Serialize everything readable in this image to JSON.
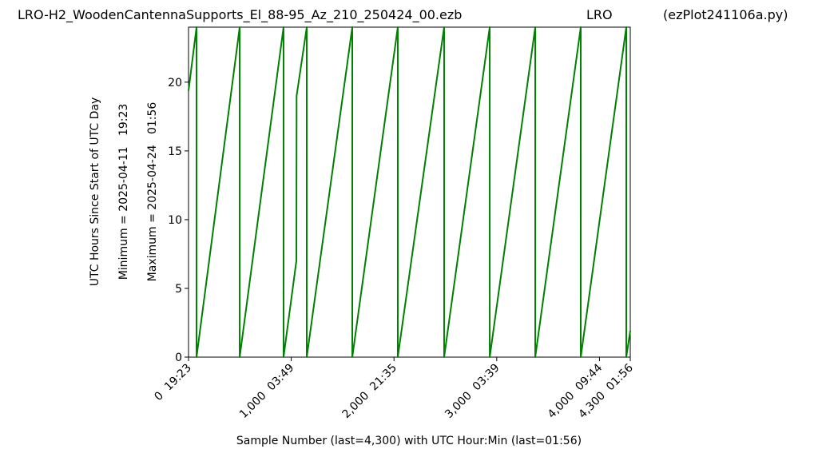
{
  "chart_data": {
    "type": "line",
    "title": "LRO-H2_WoodenCantennaSupports_El_88-95_Az_210_250424_00.ezb",
    "station": "LRO",
    "program": "(ezPlot241106a.py)",
    "ylabel": "UTC Hours Since Start of UTC Day",
    "annotations": [
      "Minimum = 2025-04-11   19:23",
      "Maximum = 2025-04-24   01:56"
    ],
    "xlabel": "Sample Number (last=4,300) with UTC Hour:Min (last=01:56)",
    "x": [
      0,
      78,
      78,
      498,
      498,
      925,
      925,
      1050,
      1052,
      1151,
      1151,
      1594,
      1594,
      2037,
      2037,
      2488,
      2488,
      2932,
      2932,
      3375,
      3375,
      3818,
      3818,
      4261,
      4261,
      4300
    ],
    "series": [
      {
        "name": "UTC Hours",
        "color": "#008000",
        "values": [
          19.38,
          24,
          0,
          24,
          0,
          24,
          0,
          7,
          19,
          24,
          0,
          24,
          0,
          24,
          0,
          24,
          0,
          24,
          0,
          24,
          0,
          24,
          0,
          24,
          0,
          1.93
        ]
      }
    ],
    "xlim": [
      0,
      4300
    ],
    "xticks": [
      {
        "value": 0,
        "label": "0  19:23"
      },
      {
        "value": 1000,
        "label": "1,000  03:49"
      },
      {
        "value": 2000,
        "label": "2,000  21:35"
      },
      {
        "value": 3000,
        "label": "3,000  03:39"
      },
      {
        "value": 4000,
        "label": "4,000  09:44"
      },
      {
        "value": 4300,
        "label": "4,300  01:56"
      }
    ],
    "ylim": [
      0,
      24
    ],
    "yticks": [
      0,
      5,
      10,
      15,
      20
    ],
    "grid": false
  }
}
